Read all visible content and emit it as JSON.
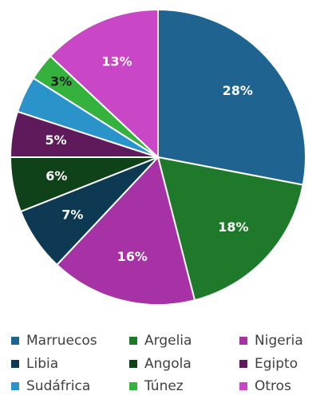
{
  "chart_data": {
    "type": "pie",
    "categories": [
      "Marruecos",
      "Argelia",
      "Nigeria",
      "Libia",
      "Angola",
      "Egipto",
      "Sudáfrica",
      "Túnez",
      "Otros"
    ],
    "values": [
      28,
      18,
      16,
      7,
      6,
      5,
      4,
      3,
      13
    ],
    "value_labels": [
      "28%",
      "18%",
      "16%",
      "7%",
      "6%",
      "5%",
      null,
      "3%",
      "13%"
    ],
    "colors": [
      "#1f6391",
      "#1e7a2a",
      "#a632a6",
      "#0d3a52",
      "#0f4218",
      "#5e1a5a",
      "#2a93c9",
      "#35b13d",
      "#c946c6"
    ],
    "legend": "bottom"
  }
}
